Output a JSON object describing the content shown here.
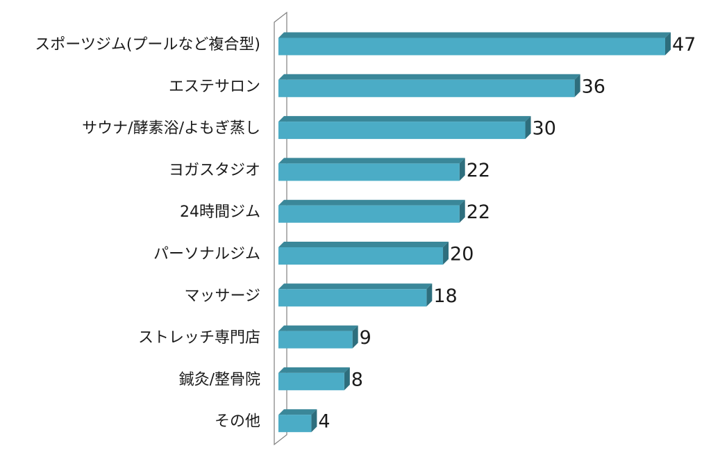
{
  "chart_data": {
    "type": "bar",
    "orientation": "horizontal",
    "style": "3d",
    "categories": [
      "スポーツジム(プールなど複合型)",
      "エステサロン",
      "サウナ/酵素浴/よもぎ蒸し",
      "ヨガスタジオ",
      "24時間ジム",
      "パーソナルジム",
      "マッサージ",
      "ストレッチ専門店",
      "鍼灸/整骨院",
      "その他"
    ],
    "values": [
      47,
      36,
      30,
      22,
      22,
      20,
      18,
      9,
      8,
      4
    ],
    "value_labels": [
      "47",
      "36",
      "30",
      "22",
      "22",
      "20",
      "18",
      "9",
      "8",
      "4"
    ],
    "title": "",
    "xlabel": "",
    "ylabel": "",
    "xlim": [
      0,
      47
    ],
    "grid": false,
    "legend": "none",
    "colors": {
      "bar_front": "#4BACC6",
      "bar_top": "#3A8799",
      "bar_side": "#2E6E7D",
      "wall": "#7F7F7F"
    }
  }
}
